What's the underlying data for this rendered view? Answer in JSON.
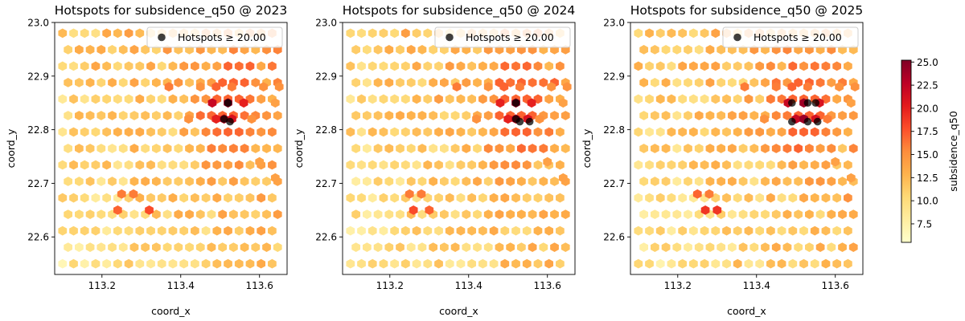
{
  "colorbar": {
    "label": "subsidence_q50",
    "ticks": [
      7.5,
      10.0,
      12.5,
      15.0,
      17.5,
      20.0,
      22.5,
      25.0
    ],
    "range": [
      5.5,
      25.2
    ],
    "cmap": "YlOrRd"
  },
  "chart_data": [
    {
      "type": "hexbin",
      "title": "Hotspots for subsidence_q50 @ 2023",
      "xlabel": "coord_x",
      "ylabel": "coord_y",
      "xlim": [
        113.08,
        113.67
      ],
      "ylim": [
        22.53,
        23.0
      ],
      "xticks": [
        "113.2",
        "113.4",
        "113.6"
      ],
      "yticks": [
        "22.6",
        "22.7",
        "22.8",
        "22.9",
        "23.0"
      ],
      "legend": {
        "label": "Hotspots ≥ 20.00",
        "loc": "upper right"
      },
      "hotspots": [
        [
          113.52,
          22.85
        ],
        [
          113.51,
          22.82
        ],
        [
          113.525,
          22.815
        ]
      ],
      "highlight_cells": [
        [
          113.48,
          22.85,
          22
        ],
        [
          113.52,
          22.85,
          24
        ],
        [
          113.56,
          22.85,
          20
        ],
        [
          113.49,
          22.82,
          20
        ],
        [
          113.51,
          22.82,
          22
        ],
        [
          113.53,
          22.82,
          21
        ],
        [
          113.37,
          22.88,
          16
        ],
        [
          113.45,
          22.88,
          15
        ],
        [
          113.49,
          22.88,
          17
        ],
        [
          113.53,
          22.88,
          16
        ],
        [
          113.61,
          22.88,
          15
        ],
        [
          113.65,
          22.88,
          15
        ],
        [
          113.42,
          22.82,
          15
        ],
        [
          113.58,
          22.82,
          15
        ],
        [
          113.64,
          22.85,
          14
        ],
        [
          113.25,
          22.68,
          16
        ],
        [
          113.28,
          22.68,
          16
        ],
        [
          113.24,
          22.65,
          17
        ],
        [
          113.32,
          22.65,
          18
        ],
        [
          113.6,
          22.74,
          14
        ],
        [
          113.64,
          22.71,
          14
        ]
      ]
    },
    {
      "type": "hexbin",
      "title": "Hotspots for subsidence_q50 @ 2024",
      "xlabel": "coord_x",
      "ylabel": "coord_y",
      "xlim": [
        113.08,
        113.67
      ],
      "ylim": [
        22.53,
        23.0
      ],
      "xticks": [
        "113.2",
        "113.4",
        "113.6"
      ],
      "yticks": [
        "22.6",
        "22.7",
        "22.8",
        "22.9",
        "23.0"
      ],
      "legend": {
        "label": "Hotspots ≥ 20.00",
        "loc": "upper right"
      },
      "hotspots": [
        [
          113.52,
          22.85
        ],
        [
          113.52,
          22.82
        ],
        [
          113.53,
          22.815
        ],
        [
          113.555,
          22.815
        ]
      ],
      "highlight_cells": [
        [
          113.48,
          22.85,
          20
        ],
        [
          113.52,
          22.85,
          24
        ],
        [
          113.56,
          22.85,
          20
        ],
        [
          113.5,
          22.82,
          20
        ],
        [
          113.52,
          22.82,
          22
        ],
        [
          113.55,
          22.82,
          21
        ],
        [
          113.37,
          22.88,
          16
        ],
        [
          113.45,
          22.88,
          15
        ],
        [
          113.49,
          22.88,
          17
        ],
        [
          113.53,
          22.88,
          16
        ],
        [
          113.61,
          22.88,
          15
        ],
        [
          113.65,
          22.88,
          15
        ],
        [
          113.42,
          22.82,
          15
        ],
        [
          113.58,
          22.82,
          15
        ],
        [
          113.64,
          22.85,
          14
        ],
        [
          113.25,
          22.68,
          16
        ],
        [
          113.28,
          22.68,
          16
        ],
        [
          113.26,
          22.65,
          18
        ],
        [
          113.3,
          22.65,
          17
        ],
        [
          113.6,
          22.74,
          14
        ],
        [
          113.64,
          22.71,
          14
        ]
      ]
    },
    {
      "type": "hexbin",
      "title": "Hotspots for subsidence_q50 @ 2025",
      "xlabel": "coord_x",
      "ylabel": "coord_y",
      "xlim": [
        113.08,
        113.67
      ],
      "ylim": [
        22.53,
        23.0
      ],
      "xticks": [
        "113.2",
        "113.4",
        "113.6"
      ],
      "yticks": [
        "22.6",
        "22.7",
        "22.8",
        "22.9",
        "23.0"
      ],
      "legend": {
        "label": "Hotspots ≥ 20.00",
        "loc": "upper right"
      },
      "hotspots": [
        [
          113.49,
          22.85
        ],
        [
          113.53,
          22.85
        ],
        [
          113.55,
          22.85
        ],
        [
          113.49,
          22.815
        ],
        [
          113.53,
          22.815
        ],
        [
          113.555,
          22.815
        ]
      ],
      "highlight_cells": [
        [
          113.48,
          22.85,
          22
        ],
        [
          113.52,
          22.85,
          24
        ],
        [
          113.56,
          22.85,
          21
        ],
        [
          113.5,
          22.82,
          22
        ],
        [
          113.52,
          22.82,
          24
        ],
        [
          113.55,
          22.82,
          21
        ],
        [
          113.37,
          22.88,
          16
        ],
        [
          113.45,
          22.88,
          16
        ],
        [
          113.49,
          22.88,
          17
        ],
        [
          113.53,
          22.88,
          16
        ],
        [
          113.61,
          22.88,
          15
        ],
        [
          113.65,
          22.88,
          15
        ],
        [
          113.42,
          22.82,
          15
        ],
        [
          113.58,
          22.82,
          16
        ],
        [
          113.64,
          22.85,
          14
        ],
        [
          113.25,
          22.68,
          17
        ],
        [
          113.28,
          22.68,
          16
        ],
        [
          113.27,
          22.65,
          19
        ],
        [
          113.3,
          22.65,
          19
        ],
        [
          113.6,
          22.74,
          14
        ],
        [
          113.64,
          22.71,
          14
        ]
      ]
    }
  ]
}
